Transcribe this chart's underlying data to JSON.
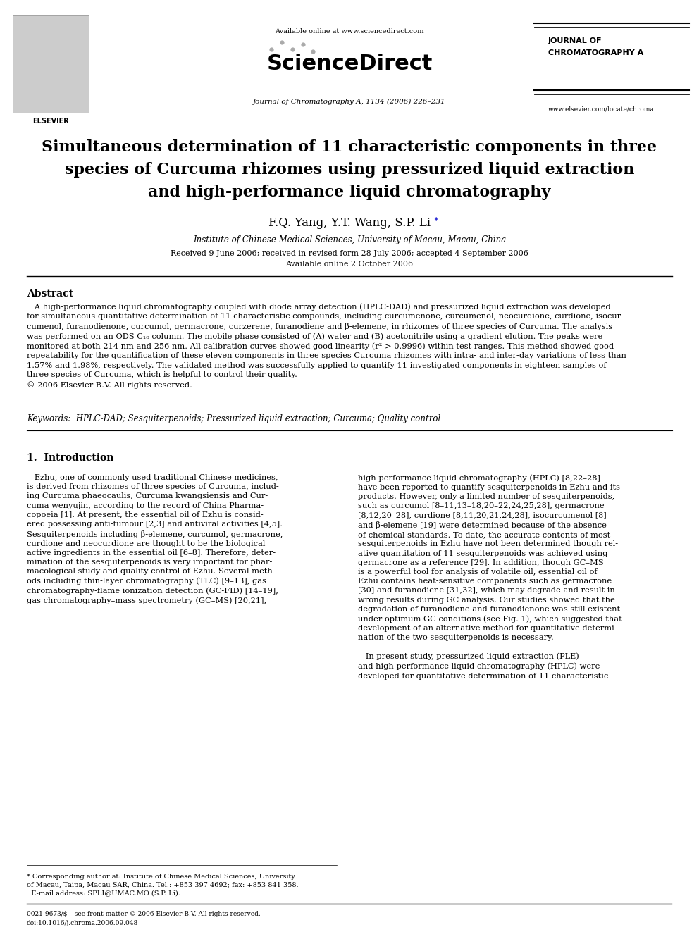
{
  "page_width": 9.92,
  "page_height": 13.23,
  "bg_color": "#ffffff",
  "header": {
    "available_online": "Available online at www.sciencedirect.com",
    "journal_line": "Journal of Chromatography A, 1134 (2006) 226–231",
    "journal_name_line1": "JOURNAL OF",
    "journal_name_line2": "CHROMATOGRAPHY A",
    "website": "www.elsevier.com/locate/chroma"
  },
  "title_line1": "Simultaneous determination of 11 characteristic components in three",
  "title_line2": "species of Curcuma rhizomes using pressurized liquid extraction",
  "title_line3": "and high-performance liquid chromatography",
  "authors": "F.Q. Yang, Y.T. Wang, S.P. Li",
  "affiliation": "Institute of Chinese Medical Sciences, University of Macau, Macau, China",
  "dates": "Received 9 June 2006; received in revised form 28 July 2006; accepted 4 September 2006",
  "available": "Available online 2 October 2006",
  "abstract_title": "Abstract",
  "keywords_text": "HPLC-DAD; Sesquiterpenoids; Pressurized liquid extraction; Curcuma; Quality control",
  "section1_title": "1.  Introduction",
  "colors": {
    "black": "#000000",
    "blue_link": "#0000cc",
    "gray_text": "#666666"
  }
}
